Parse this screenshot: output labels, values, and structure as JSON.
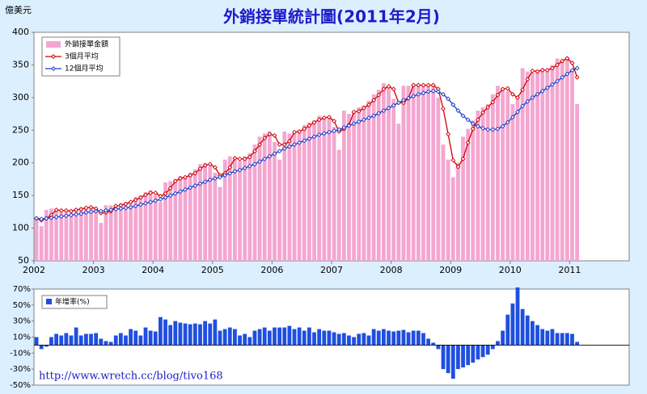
{
  "chart_data": [
    {
      "type": "combo",
      "title": "外銷接單統計圖(2011年2月)",
      "y_label": "億美元",
      "categories": [
        "2002",
        null,
        null,
        null,
        null,
        null,
        null,
        null,
        null,
        null,
        null,
        null,
        "2003",
        null,
        null,
        null,
        null,
        null,
        null,
        null,
        null,
        null,
        null,
        null,
        "2004",
        null,
        null,
        null,
        null,
        null,
        null,
        null,
        null,
        null,
        null,
        null,
        "2005",
        null,
        null,
        null,
        null,
        null,
        null,
        null,
        null,
        null,
        null,
        null,
        "2006",
        null,
        null,
        null,
        null,
        null,
        null,
        null,
        null,
        null,
        null,
        null,
        "2007",
        null,
        null,
        null,
        null,
        null,
        null,
        null,
        null,
        null,
        null,
        null,
        "2008",
        null,
        null,
        null,
        null,
        null,
        null,
        null,
        null,
        null,
        null,
        null,
        "2009",
        null,
        null,
        null,
        null,
        null,
        null,
        null,
        null,
        null,
        null,
        null,
        "2010",
        null,
        null,
        null,
        null,
        null,
        null,
        null,
        null,
        null,
        null,
        null,
        "2011",
        null,
        null,
        null,
        null,
        null,
        null,
        null,
        null,
        null,
        null,
        null
      ],
      "ylim": [
        50,
        400
      ],
      "yticks": [
        50,
        100,
        150,
        200,
        250,
        300,
        350,
        400
      ],
      "series": [
        {
          "name": "外銷接單金額",
          "kind": "bar",
          "color": "#f4a6d0",
          "values": [
            115,
            103,
            128,
            130,
            127,
            125,
            128,
            125,
            130,
            132,
            130,
            133,
            128,
            108,
            135,
            135,
            133,
            138,
            140,
            142,
            148,
            150,
            155,
            158,
            150,
            140,
            170,
            172,
            175,
            180,
            178,
            185,
            190,
            198,
            200,
            195,
            185,
            163,
            205,
            210,
            205,
            203,
            210,
            215,
            228,
            240,
            245,
            248,
            232,
            205,
            248,
            245,
            248,
            250,
            258,
            262,
            265,
            272,
            270,
            268,
            255,
            220,
            280,
            275,
            278,
            285,
            288,
            295,
            305,
            312,
            322,
            318,
            298,
            260,
            318,
            318,
            320,
            318,
            318,
            320,
            320,
            300,
            228,
            205,
            178,
            200,
            240,
            252,
            265,
            280,
            285,
            290,
            305,
            318,
            315,
            310,
            290,
            300,
            345,
            340,
            338,
            342,
            345,
            340,
            350,
            360,
            358,
            362,
            340,
            290,
            null,
            null,
            null,
            null,
            null,
            null,
            null,
            null,
            null,
            null
          ]
        },
        {
          "name": "3個月平均",
          "kind": "line",
          "color": "#cc0000",
          "values": [
            115,
            112,
            115,
            120,
            128,
            127,
            127,
            126,
            128,
            129,
            131,
            132,
            130,
            123,
            124,
            126,
            134,
            135,
            137,
            140,
            143,
            147,
            151,
            154,
            154,
            149,
            153,
            161,
            172,
            176,
            178,
            181,
            184,
            191,
            196,
            198,
            193,
            181,
            184,
            193,
            207,
            206,
            206,
            209,
            218,
            228,
            238,
            244,
            242,
            228,
            228,
            233,
            247,
            248,
            252,
            257,
            262,
            266,
            269,
            270,
            264,
            248,
            252,
            258,
            278,
            279,
            284,
            289,
            296,
            304,
            313,
            317,
            313,
            292,
            292,
            299,
            319,
            319,
            319,
            319,
            319,
            313,
            283,
            244,
            204,
            194,
            206,
            231,
            252,
            266,
            277,
            285,
            293,
            304,
            313,
            314,
            305,
            300,
            312,
            328,
            341,
            340,
            342,
            342,
            345,
            350,
            356,
            360,
            353,
            331,
            null,
            null,
            null,
            null,
            null,
            null,
            null,
            null,
            null,
            null
          ]
        },
        {
          "name": "12個月平均",
          "kind": "line",
          "color": "#1a3cc8",
          "values": [
            115,
            114,
            115,
            116,
            117,
            118,
            119,
            120,
            121,
            122,
            124,
            125,
            126,
            126,
            127,
            128,
            129,
            130,
            131,
            132,
            134,
            136,
            138,
            140,
            142,
            144,
            147,
            150,
            153,
            156,
            159,
            162,
            165,
            168,
            171,
            174,
            176,
            178,
            181,
            184,
            187,
            189,
            192,
            195,
            198,
            202,
            206,
            210,
            214,
            218,
            222,
            225,
            228,
            231,
            234,
            237,
            240,
            243,
            245,
            247,
            249,
            251,
            254,
            257,
            260,
            263,
            266,
            269,
            272,
            276,
            280,
            284,
            288,
            292,
            296,
            299,
            302,
            305,
            307,
            309,
            310,
            309,
            305,
            298,
            289,
            280,
            272,
            266,
            260,
            256,
            253,
            251,
            251,
            252,
            256,
            262,
            270,
            278,
            287,
            294,
            300,
            305,
            310,
            315,
            320,
            325,
            331,
            336,
            342,
            345,
            null,
            null,
            null,
            null,
            null,
            null,
            null,
            null,
            null,
            null
          ]
        }
      ]
    },
    {
      "type": "bar",
      "annotation": "http://www.wretch.cc/blog/tivo168",
      "ylim": [
        -50,
        70
      ],
      "yticks": [
        {
          "value": 70,
          "label": "70%"
        },
        {
          "value": 50,
          "label": "50%"
        },
        {
          "value": 30,
          "label": "30%"
        },
        {
          "value": 10,
          "label": "10%"
        },
        {
          "value": -10,
          "label": "-10%"
        },
        {
          "value": -30,
          "label": "-30%"
        },
        {
          "value": -50,
          "label": "-50%"
        }
      ],
      "series": [
        {
          "name": "年增率(%)",
          "color": "#1f4fe0",
          "values": [
            10,
            -5,
            -2,
            10,
            14,
            12,
            15,
            12,
            22,
            12,
            14,
            14,
            15,
            8,
            5,
            4,
            12,
            15,
            12,
            20,
            18,
            12,
            22,
            18,
            17,
            35,
            32,
            25,
            30,
            28,
            27,
            26,
            27,
            26,
            30,
            27,
            32,
            18,
            20,
            22,
            20,
            12,
            14,
            10,
            18,
            20,
            22,
            18,
            22,
            22,
            22,
            24,
            20,
            22,
            18,
            22,
            16,
            20,
            18,
            18,
            16,
            14,
            15,
            12,
            10,
            14,
            15,
            12,
            20,
            18,
            20,
            18,
            17,
            18,
            19,
            16,
            18,
            18,
            15,
            8,
            3,
            -5,
            -30,
            -35,
            -42,
            -30,
            -28,
            -25,
            -22,
            -18,
            -15,
            -12,
            -5,
            5,
            18,
            38,
            52,
            72,
            45,
            37,
            30,
            25,
            20,
            18,
            20,
            15,
            15,
            15,
            14,
            4,
            null,
            null,
            null,
            null,
            null,
            null,
            null,
            null,
            null,
            null
          ]
        }
      ]
    }
  ]
}
